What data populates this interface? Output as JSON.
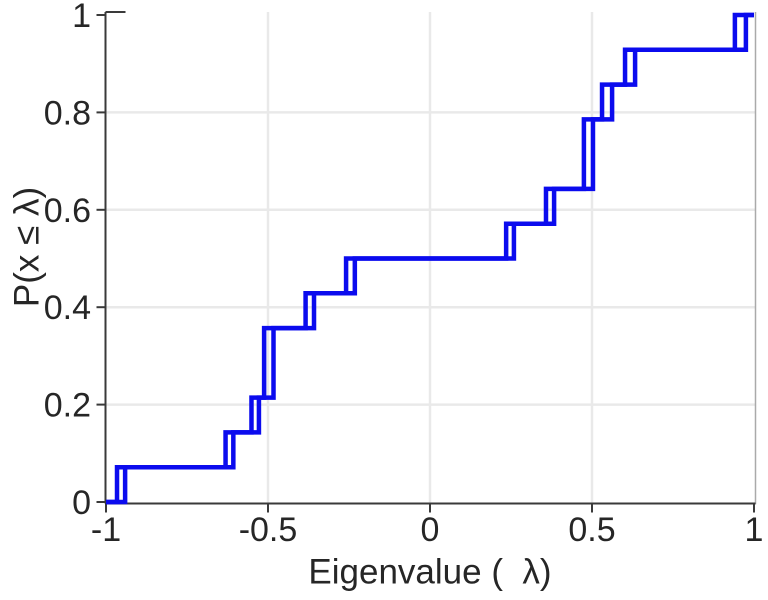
{
  "figure": {
    "title": "",
    "background": "#ffffff",
    "colors": {
      "line": "#0b0bee",
      "axis_dark": "#3a3a3a",
      "axis_light": "#aaaaaa",
      "grid": "#e9e9e9",
      "text": "#262626"
    }
  },
  "chart_data": {
    "type": "line",
    "subtype": "ecdf-stairs",
    "title": "",
    "xlabel": "Eigenvalue (  λ)",
    "ylabel": "P(x ≤ λ)",
    "xlim": [
      -1,
      1
    ],
    "ylim": [
      0,
      1
    ],
    "grid": true,
    "legend": null,
    "x_ticks": [
      -1,
      -0.5,
      0,
      0.5,
      1
    ],
    "x_tick_labels": [
      "-1",
      "-0.5",
      "0",
      "0.5",
      "1"
    ],
    "y_ticks": [
      0,
      0.2,
      0.4,
      0.6,
      0.8,
      1
    ],
    "y_tick_labels": [
      "0",
      "0.2",
      "0.4",
      "0.6",
      "0.8",
      "1"
    ],
    "n_points_per_series": 14,
    "step_levels": [
      0.0714,
      0.1429,
      0.2143,
      0.2857,
      0.3571,
      0.4286,
      0.5,
      0.5714,
      0.6429,
      0.7143,
      0.7857,
      0.8571,
      0.9286,
      1.0
    ],
    "series": [
      {
        "name": "ecdf-curve-1",
        "color": "#0b0bee",
        "values": [
          -0.966,
          -0.631,
          -0.551,
          -0.512,
          -0.512,
          -0.384,
          -0.259,
          0.235,
          0.358,
          0.475,
          0.475,
          0.531,
          0.602,
          0.941
        ]
      },
      {
        "name": "ecdf-curve-2",
        "color": "#0b0bee",
        "values": [
          -0.941,
          -0.607,
          -0.528,
          -0.483,
          -0.483,
          -0.358,
          -0.232,
          0.259,
          0.383,
          0.503,
          0.503,
          0.562,
          0.633,
          0.975
        ]
      }
    ]
  }
}
